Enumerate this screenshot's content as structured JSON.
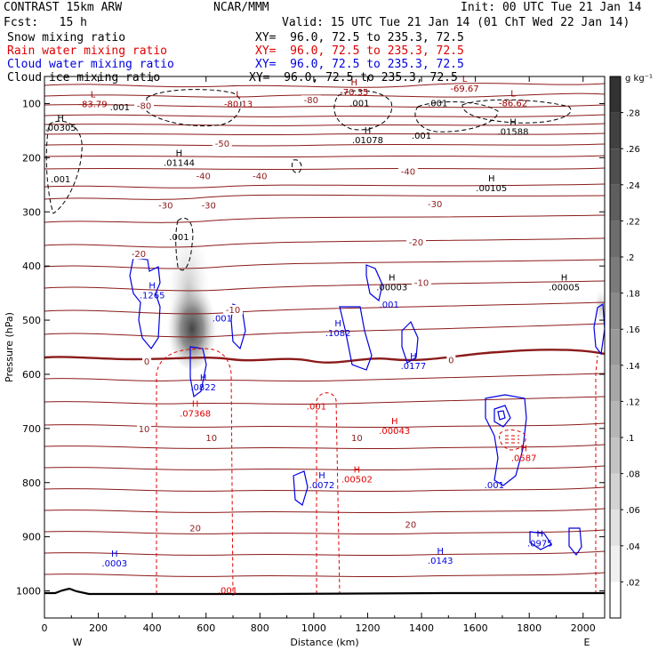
{
  "header": {
    "model": "CONTRAST 15km ARW",
    "center": "NCAR/MMM",
    "init": "Init: 00 UTC Tue 21 Jan 14",
    "fcst": "Fcst:   15 h",
    "valid": "Valid: 15 UTC Tue 21 Jan 14 (01 ChT Wed 22 Jan 14)"
  },
  "fields": [
    {
      "name": "Snow mixing ratio",
      "xy": "XY=  96.0, 72.5 to 235.3, 72.5",
      "color": "#000000"
    },
    {
      "name": "Rain water mixing ratio",
      "xy": "XY=  96.0, 72.5 to 235.3, 72.5",
      "color": "#e00000"
    },
    {
      "name": "Cloud water mixing ratio",
      "xy": "XY=  96.0, 72.5 to 235.3, 72.5",
      "color": "#0000e0"
    },
    {
      "name": "Cloud ice mixing ratio",
      "xy": "XY=  96.0, 72.5 to 235.3, 72.5",
      "color": "#000000"
    }
  ],
  "chart_data": {
    "type": "cross-section",
    "xlabel": "Distance (km)",
    "ylabel": "Pressure (hPa)",
    "xlim": [
      0,
      2080
    ],
    "ylim": [
      1050,
      50
    ],
    "x_ticks": [
      0,
      200,
      400,
      600,
      800,
      1000,
      1200,
      1400,
      1600,
      1800,
      2000
    ],
    "y_ticks": [
      100,
      200,
      300,
      400,
      500,
      600,
      700,
      800,
      900,
      1000
    ],
    "x_end_labels": {
      "left": "W",
      "right": "E"
    },
    "colorbar": {
      "unit": "g kg⁻¹",
      "ticks": [
        ".02",
        ".04",
        ".06",
        ".08",
        ".1",
        ".12",
        ".14",
        ".16",
        ".18",
        ".2",
        ".22",
        ".24",
        ".26",
        ".28"
      ]
    },
    "temperature_labels": [
      {
        "x": 370,
        "p": 108,
        "t": "-80"
      },
      {
        "x": 990,
        "p": 98,
        "t": "-80"
      },
      {
        "x": 660,
        "p": 178,
        "t": "-50"
      },
      {
        "x": 590,
        "p": 238,
        "t": "-40"
      },
      {
        "x": 800,
        "p": 238,
        "t": "-40"
      },
      {
        "x": 1350,
        "p": 230,
        "t": "-40"
      },
      {
        "x": 450,
        "p": 292,
        "t": "-30"
      },
      {
        "x": 610,
        "p": 292,
        "t": "-30"
      },
      {
        "x": 1450,
        "p": 290,
        "t": "-30"
      },
      {
        "x": 350,
        "p": 382,
        "t": "-20"
      },
      {
        "x": 1380,
        "p": 360,
        "t": "-20"
      },
      {
        "x": 1400,
        "p": 435,
        "t": "-10"
      },
      {
        "x": 700,
        "p": 485,
        "t": "-10"
      },
      {
        "x": 380,
        "p": 580,
        "t": "0"
      },
      {
        "x": 1510,
        "p": 578,
        "t": "0"
      },
      {
        "x": 370,
        "p": 705,
        "t": "10"
      },
      {
        "x": 620,
        "p": 722,
        "t": "10"
      },
      {
        "x": 1160,
        "p": 722,
        "t": "10"
      },
      {
        "x": 560,
        "p": 888,
        "t": "20"
      },
      {
        "x": 1360,
        "p": 882,
        "t": "20"
      }
    ],
    "extremum_labels": [
      {
        "x": 180,
        "p": 97,
        "s": "L",
        "v": "-83.79",
        "c": "#a00000"
      },
      {
        "x": 720,
        "p": 97,
        "s": "L",
        "v": "-80.13",
        "c": "#a00000"
      },
      {
        "x": 1150,
        "p": 75,
        "s": "H",
        "v": "-70.35",
        "c": "#a00000"
      },
      {
        "x": 1560,
        "p": 68,
        "s": "L",
        "v": "-69.67",
        "c": "#a00000"
      },
      {
        "x": 1740,
        "p": 95,
        "s": "L",
        "v": "-86.62",
        "c": "#a00000"
      },
      {
        "x": 60,
        "p": 140,
        "s": "H",
        "v": ".00305",
        "c": "#000000"
      },
      {
        "x": 500,
        "p": 205,
        "s": "H",
        "v": ".01144",
        "c": "#000000"
      },
      {
        "x": 1200,
        "p": 163,
        "s": "H",
        "v": ".01078",
        "c": "#000000"
      },
      {
        "x": 1740,
        "p": 148,
        "s": "H",
        "v": ".01588",
        "c": "#000000"
      },
      {
        "x": 1660,
        "p": 252,
        "s": "H",
        "v": ".00105",
        "c": "#000000"
      },
      {
        "x": 1290,
        "p": 435,
        "s": "H",
        "v": ".00003",
        "c": "#000000"
      },
      {
        "x": 1930,
        "p": 435,
        "s": "H",
        "v": ".00005",
        "c": "#000000"
      },
      {
        "x": 400,
        "p": 450,
        "s": "H",
        "v": ".1265",
        "c": "#0000e0"
      },
      {
        "x": 1090,
        "p": 520,
        "s": "H",
        "v": ".1082",
        "c": "#0000e0"
      },
      {
        "x": 1370,
        "p": 580,
        "s": "H",
        "v": ".0177",
        "c": "#0000e0"
      },
      {
        "x": 590,
        "p": 620,
        "s": "H",
        "v": ".0822",
        "c": "#0000e0"
      },
      {
        "x": 1030,
        "p": 800,
        "s": "H",
        "v": ".0072",
        "c": "#0000e0"
      },
      {
        "x": 260,
        "p": 945,
        "s": "H",
        "v": ".0003",
        "c": "#0000e0"
      },
      {
        "x": 1470,
        "p": 940,
        "s": "H",
        "v": ".0143",
        "c": "#0000e0"
      },
      {
        "x": 1840,
        "p": 908,
        "s": "H",
        "v": ".0975",
        "c": "#0000e0"
      },
      {
        "x": 560,
        "p": 668,
        "s": "H",
        "v": ".07368",
        "c": "#e00000"
      },
      {
        "x": 1160,
        "p": 790,
        "s": "H",
        "v": ".00502",
        "c": "#e00000"
      },
      {
        "x": 1300,
        "p": 700,
        "s": "H",
        "v": ".00043",
        "c": "#e00000"
      },
      {
        "x": 1780,
        "p": 750,
        "s": "H",
        "v": ".0587",
        "c": "#e00000"
      }
    ],
    "contour_value_labels": [
      {
        "x": 280,
        "p": 112,
        "v": ".001",
        "c": "#000000"
      },
      {
        "x": 1170,
        "p": 105,
        "v": ".001",
        "c": "#000000"
      },
      {
        "x": 1460,
        "p": 105,
        "v": ".001",
        "c": "#000000"
      },
      {
        "x": 1400,
        "p": 165,
        "v": ".001",
        "c": "#000000"
      },
      {
        "x": 60,
        "p": 245,
        "v": ".001",
        "c": "#000000"
      },
      {
        "x": 500,
        "p": 352,
        "v": ".001",
        "c": "#000000"
      },
      {
        "x": 660,
        "p": 502,
        "v": ".001",
        "c": "#0000e0"
      },
      {
        "x": 1280,
        "p": 477,
        "v": ".001",
        "c": "#0000e0"
      },
      {
        "x": 1670,
        "p": 810,
        "v": ".001",
        "c": "#0000e0"
      },
      {
        "x": 1010,
        "p": 665,
        "v": ".001",
        "c": "#e00000"
      },
      {
        "x": 680,
        "p": 1005,
        "v": ".001",
        "c": "#e00000"
      }
    ]
  }
}
